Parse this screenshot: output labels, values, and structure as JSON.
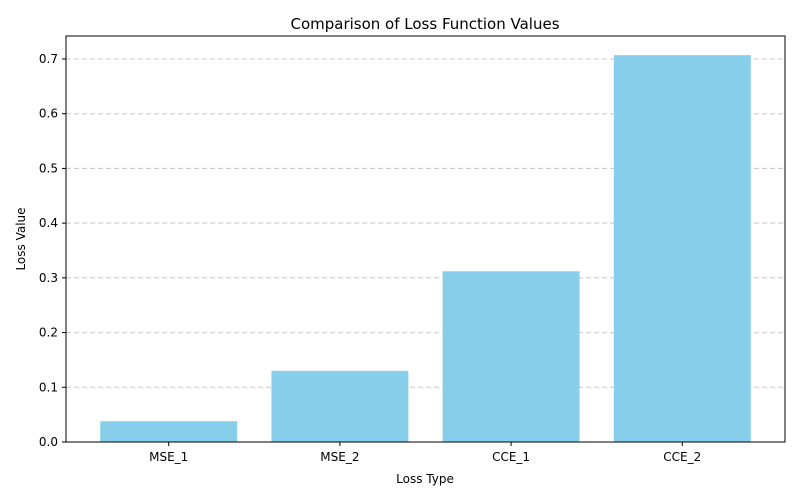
{
  "chart_data": {
    "type": "bar",
    "title": "Comparison of Loss Function Values",
    "xlabel": "Loss Type",
    "ylabel": "Loss Value",
    "categories": [
      "MSE_1",
      "MSE_2",
      "CCE_1",
      "CCE_2"
    ],
    "values": [
      0.038,
      0.13,
      0.312,
      0.707
    ],
    "ylim": [
      0,
      0.742
    ],
    "yticks": [
      0.0,
      0.1,
      0.2,
      0.3,
      0.4,
      0.5,
      0.6,
      0.7
    ],
    "ytick_labels": [
      "0.0",
      "0.1",
      "0.2",
      "0.3",
      "0.4",
      "0.5",
      "0.6",
      "0.7"
    ],
    "grid": "y-dashed",
    "bar_color": "#87ceeb",
    "grid_color": "#c8c8c8"
  }
}
